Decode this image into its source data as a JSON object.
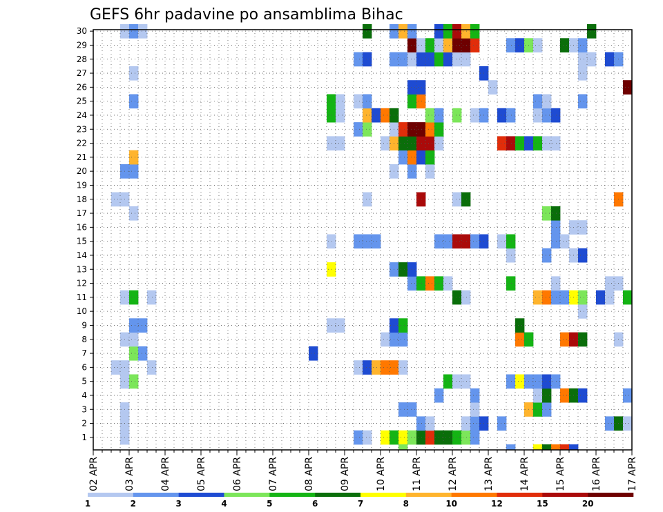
{
  "chart_data": {
    "type": "heatmap",
    "title": "GEFS 6hr padavine po ansamblima Bihac",
    "xlabel": "",
    "ylabel": "",
    "x_tick_labels": [
      "02 APR",
      "03 APR",
      "04 APR",
      "05 APR",
      "06 APR",
      "07 APR",
      "08 APR",
      "09 APR",
      "10 APR",
      "11 APR",
      "12 APR",
      "13 APR",
      "14 APR",
      "15 APR",
      "16 APR",
      "17 APR"
    ],
    "x_steps_per_day": 4,
    "x_total_steps": 60,
    "y_members": [
      1,
      2,
      3,
      4,
      5,
      6,
      7,
      8,
      9,
      10,
      11,
      12,
      13,
      14,
      15,
      16,
      17,
      18,
      19,
      20,
      21,
      22,
      23,
      24,
      25,
      26,
      27,
      28,
      29,
      30
    ],
    "grid": true,
    "legend": {
      "position": "bottom",
      "labels": [
        "1",
        "2",
        "3",
        "4",
        "5",
        "6",
        "7",
        "8",
        "10",
        "12",
        "15",
        "20"
      ],
      "bins": [
        {
          "lower": 1,
          "color": "#b4c8f0"
        },
        {
          "lower": 2,
          "color": "#6495ed"
        },
        {
          "lower": 3,
          "color": "#1e4bd2"
        },
        {
          "lower": 4,
          "color": "#7ce65a"
        },
        {
          "lower": 5,
          "color": "#14b414"
        },
        {
          "lower": 6,
          "color": "#0a6e0a"
        },
        {
          "lower": 7,
          "color": "#ffff00"
        },
        {
          "lower": 8,
          "color": "#ffb42d"
        },
        {
          "lower": 10,
          "color": "#ff7800"
        },
        {
          "lower": 12,
          "color": "#e12d0a"
        },
        {
          "lower": 15,
          "color": "#aa0a0a"
        },
        {
          "lower": 20,
          "color": "#6e0000"
        }
      ]
    },
    "cells": [
      {
        "member": 1,
        "values": [
          [
            4,
            1
          ],
          [
            30,
            2
          ],
          [
            31,
            1
          ],
          [
            33,
            7
          ],
          [
            34,
            5
          ],
          [
            35,
            7
          ],
          [
            36,
            4
          ],
          [
            37,
            6
          ],
          [
            38,
            12
          ],
          [
            39,
            6
          ],
          [
            40,
            6
          ],
          [
            41,
            5
          ],
          [
            42,
            4
          ],
          [
            43,
            2
          ]
        ]
      },
      {
        "member": 2,
        "values": [
          [
            4,
            1
          ],
          [
            37,
            2
          ],
          [
            38,
            1
          ],
          [
            42,
            1
          ],
          [
            43,
            2
          ],
          [
            44,
            3
          ],
          [
            46,
            2
          ],
          [
            58,
            2
          ],
          [
            59,
            6
          ],
          [
            60,
            1
          ]
        ]
      },
      {
        "member": 3,
        "values": [
          [
            4,
            1
          ],
          [
            35,
            2
          ],
          [
            36,
            2
          ],
          [
            43,
            1
          ],
          [
            49,
            8
          ],
          [
            50,
            5
          ],
          [
            51,
            2
          ]
        ]
      },
      {
        "member": 4,
        "values": [
          [
            39,
            2
          ],
          [
            43,
            2
          ],
          [
            50,
            1
          ],
          [
            51,
            6
          ],
          [
            53,
            10
          ],
          [
            54,
            6
          ],
          [
            55,
            3
          ],
          [
            60,
            2
          ]
        ]
      },
      {
        "member": 5,
        "values": [
          [
            4,
            1
          ],
          [
            5,
            4
          ],
          [
            40,
            5
          ],
          [
            41,
            1
          ],
          [
            42,
            1
          ],
          [
            47,
            2
          ],
          [
            48,
            7
          ],
          [
            49,
            2
          ],
          [
            50,
            2
          ],
          [
            51,
            3
          ],
          [
            52,
            2
          ]
        ]
      },
      {
        "member": 6,
        "values": [
          [
            3,
            1
          ],
          [
            4,
            1
          ],
          [
            7,
            1
          ],
          [
            30,
            1
          ],
          [
            31,
            3
          ],
          [
            32,
            8
          ],
          [
            33,
            10
          ],
          [
            34,
            10
          ],
          [
            35,
            1
          ]
        ]
      },
      {
        "member": 7,
        "values": [
          [
            5,
            4
          ],
          [
            6,
            2
          ],
          [
            25,
            3
          ]
        ]
      },
      {
        "member": 8,
        "values": [
          [
            4,
            1
          ],
          [
            5,
            1
          ],
          [
            33,
            1
          ],
          [
            34,
            2
          ],
          [
            35,
            2
          ],
          [
            48,
            10
          ],
          [
            49,
            5
          ],
          [
            53,
            10
          ],
          [
            54,
            15
          ],
          [
            55,
            6
          ],
          [
            59,
            1
          ]
        ]
      },
      {
        "member": 9,
        "values": [
          [
            5,
            2
          ],
          [
            6,
            2
          ],
          [
            27,
            1
          ],
          [
            28,
            1
          ],
          [
            34,
            3
          ],
          [
            35,
            5
          ],
          [
            48,
            6
          ]
        ]
      },
      {
        "member": 10,
        "values": [
          [
            55,
            1
          ]
        ]
      },
      {
        "member": 11,
        "values": [
          [
            4,
            1
          ],
          [
            5,
            5
          ],
          [
            7,
            1
          ],
          [
            41,
            6
          ],
          [
            42,
            1
          ],
          [
            50,
            8
          ],
          [
            51,
            10
          ],
          [
            52,
            2
          ],
          [
            53,
            2
          ],
          [
            54,
            7
          ],
          [
            55,
            4
          ],
          [
            57,
            3
          ],
          [
            58,
            1
          ],
          [
            60,
            5
          ]
        ]
      },
      {
        "member": 12,
        "values": [
          [
            36,
            2
          ],
          [
            37,
            5
          ],
          [
            38,
            10
          ],
          [
            39,
            5
          ],
          [
            40,
            1
          ],
          [
            47,
            5
          ],
          [
            52,
            1
          ],
          [
            58,
            1
          ],
          [
            59,
            1
          ]
        ]
      },
      {
        "member": 13,
        "values": [
          [
            27,
            7
          ],
          [
            34,
            2
          ],
          [
            35,
            6
          ],
          [
            36,
            3
          ]
        ]
      },
      {
        "member": 14,
        "values": [
          [
            47,
            1
          ],
          [
            51,
            2
          ],
          [
            54,
            1
          ],
          [
            55,
            3
          ]
        ]
      },
      {
        "member": 15,
        "values": [
          [
            27,
            1
          ],
          [
            30,
            2
          ],
          [
            31,
            2
          ],
          [
            32,
            2
          ],
          [
            39,
            2
          ],
          [
            40,
            2
          ],
          [
            41,
            15
          ],
          [
            42,
            15
          ],
          [
            43,
            2
          ],
          [
            44,
            3
          ],
          [
            46,
            1
          ],
          [
            47,
            5
          ],
          [
            52,
            2
          ],
          [
            53,
            1
          ]
        ]
      },
      {
        "member": 16,
        "values": [
          [
            52,
            2
          ],
          [
            54,
            1
          ],
          [
            55,
            1
          ]
        ]
      },
      {
        "member": 17,
        "values": [
          [
            5,
            1
          ],
          [
            51,
            4
          ],
          [
            52,
            6
          ]
        ]
      },
      {
        "member": 18,
        "values": [
          [
            3,
            1
          ],
          [
            4,
            1
          ],
          [
            31,
            1
          ],
          [
            37,
            15
          ],
          [
            41,
            1
          ],
          [
            42,
            6
          ],
          [
            59,
            10
          ]
        ]
      },
      {
        "member": 20,
        "values": [
          [
            4,
            2
          ],
          [
            5,
            2
          ],
          [
            34,
            1
          ],
          [
            36,
            2
          ],
          [
            38,
            1
          ]
        ]
      },
      {
        "member": 21,
        "values": [
          [
            5,
            8
          ],
          [
            35,
            2
          ],
          [
            36,
            10
          ],
          [
            37,
            3
          ],
          [
            38,
            5
          ]
        ]
      },
      {
        "member": 22,
        "values": [
          [
            27,
            1
          ],
          [
            28,
            1
          ],
          [
            33,
            1
          ],
          [
            34,
            8
          ],
          [
            35,
            6
          ],
          [
            36,
            6
          ],
          [
            37,
            15
          ],
          [
            38,
            15
          ],
          [
            39,
            1
          ],
          [
            46,
            12
          ],
          [
            47,
            15
          ],
          [
            48,
            5
          ],
          [
            49,
            3
          ],
          [
            50,
            5
          ],
          [
            51,
            1
          ],
          [
            52,
            1
          ]
        ]
      },
      {
        "member": 23,
        "values": [
          [
            30,
            2
          ],
          [
            31,
            4
          ],
          [
            34,
            1
          ],
          [
            35,
            12
          ],
          [
            36,
            20
          ],
          [
            37,
            20
          ],
          [
            38,
            10
          ],
          [
            39,
            5
          ]
        ]
      },
      {
        "member": 24,
        "values": [
          [
            27,
            5
          ],
          [
            28,
            1
          ],
          [
            31,
            8
          ],
          [
            32,
            3
          ],
          [
            33,
            10
          ],
          [
            34,
            6
          ],
          [
            38,
            4
          ],
          [
            39,
            2
          ],
          [
            41,
            4
          ],
          [
            43,
            1
          ],
          [
            44,
            2
          ],
          [
            46,
            3
          ],
          [
            47,
            2
          ],
          [
            50,
            1
          ],
          [
            51,
            2
          ],
          [
            52,
            3
          ]
        ]
      },
      {
        "member": 25,
        "values": [
          [
            5,
            2
          ],
          [
            27,
            5
          ],
          [
            28,
            1
          ],
          [
            30,
            1
          ],
          [
            31,
            2
          ],
          [
            36,
            5
          ],
          [
            37,
            10
          ],
          [
            50,
            2
          ],
          [
            51,
            1
          ],
          [
            55,
            2
          ]
        ]
      },
      {
        "member": 26,
        "values": [
          [
            36,
            3
          ],
          [
            37,
            3
          ],
          [
            45,
            1
          ],
          [
            60,
            20
          ]
        ]
      },
      {
        "member": 27,
        "values": [
          [
            5,
            1
          ],
          [
            44,
            3
          ],
          [
            55,
            1
          ]
        ]
      },
      {
        "member": 28,
        "values": [
          [
            30,
            2
          ],
          [
            31,
            3
          ],
          [
            34,
            2
          ],
          [
            35,
            2
          ],
          [
            36,
            1
          ],
          [
            37,
            3
          ],
          [
            38,
            3
          ],
          [
            39,
            5
          ],
          [
            40,
            3
          ],
          [
            41,
            1
          ],
          [
            42,
            1
          ],
          [
            55,
            1
          ],
          [
            56,
            1
          ],
          [
            58,
            3
          ],
          [
            59,
            2
          ]
        ]
      },
      {
        "member": 29,
        "values": [
          [
            36,
            20
          ],
          [
            37,
            1
          ],
          [
            38,
            5
          ],
          [
            39,
            1
          ],
          [
            40,
            8
          ],
          [
            41,
            20
          ],
          [
            42,
            20
          ],
          [
            43,
            12
          ],
          [
            47,
            2
          ],
          [
            48,
            3
          ],
          [
            49,
            4
          ],
          [
            50,
            1
          ],
          [
            53,
            6
          ],
          [
            54,
            1
          ],
          [
            55,
            2
          ]
        ]
      },
      {
        "member": 30,
        "values": [
          [
            4,
            1
          ],
          [
            5,
            2
          ],
          [
            6,
            1
          ],
          [
            31,
            6
          ],
          [
            34,
            2
          ],
          [
            35,
            8
          ],
          [
            36,
            2
          ],
          [
            39,
            3
          ],
          [
            40,
            5
          ],
          [
            41,
            15
          ],
          [
            42,
            8
          ],
          [
            43,
            5
          ],
          [
            56,
            6
          ]
        ]
      },
      {
        "member": 0,
        "values": [
          [
            35,
            4
          ],
          [
            47,
            2
          ],
          [
            50,
            7
          ],
          [
            51,
            6
          ],
          [
            52,
            10
          ],
          [
            53,
            12
          ],
          [
            54,
            3
          ]
        ]
      }
    ]
  }
}
